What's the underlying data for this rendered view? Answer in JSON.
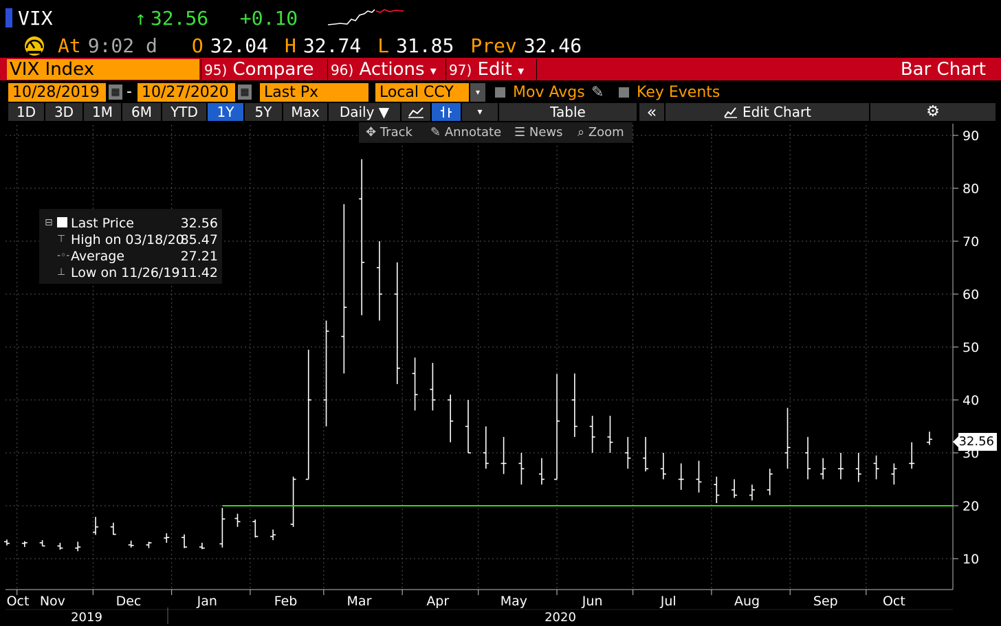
{
  "header": {
    "ticker": "VIX",
    "last_arrow": "↑",
    "last": "32.56",
    "change": "+0.10",
    "time_label": "At",
    "time": "9:02 d",
    "open_label": "O",
    "open": "32.04",
    "high_label": "H",
    "high": "32.74",
    "low_label": "L",
    "low": "31.85",
    "prev_label": "Prev",
    "prev": "32.46"
  },
  "tabs": {
    "index": "VIX Index",
    "compare_num": "95)",
    "compare": "Compare",
    "actions_num": "96)",
    "actions": "Actions",
    "edit_num": "97)",
    "edit": "Edit",
    "dropdown": "▾",
    "chart_kind": "Bar Chart"
  },
  "params": {
    "start_date": "10/28/2019",
    "dash": "-",
    "end_date": "10/27/2020",
    "field": "Last Px",
    "currency": "Local CCY",
    "mov_avgs": "Mov Avgs",
    "key_events": "Key Events"
  },
  "ranges": [
    "1D",
    "3D",
    "1M",
    "6M",
    "YTD",
    "1Y",
    "5Y",
    "Max"
  ],
  "active_range": "1Y",
  "range_controls": {
    "period": "Daily ▼",
    "table": "Table",
    "collapse": "«",
    "edit_chart": "Edit Chart",
    "settings_icon": "⚙"
  },
  "toolbar": {
    "track": "Track",
    "annotate": "Annotate",
    "news": "News",
    "zoom": "Zoom"
  },
  "legend": {
    "last_label": "Last Price",
    "last_value": "32.56",
    "high_label": "High on 03/18/20",
    "high_value": "85.47",
    "avg_label": "Average",
    "avg_value": "27.21",
    "low_label": "Low on 11/26/19",
    "low_value": "11.42"
  },
  "last_tag": "32.56",
  "colors": {
    "orange": "#ff9d00",
    "red_tab": "#c4001b",
    "up_green": "#3dde3d",
    "reference_line": "#33dd11",
    "active_blue": "#1f5fcc"
  },
  "chart_data": {
    "type": "bar",
    "subtype": "OHLC",
    "ylim": [
      4,
      92
    ],
    "yticks": [
      10,
      20,
      30,
      40,
      50,
      60,
      70,
      80,
      90
    ],
    "month_labels": [
      "Oct",
      "Nov",
      "Dec",
      "Jan",
      "Feb",
      "Mar",
      "Apr",
      "May",
      "Jun",
      "Jul",
      "Aug",
      "Sep",
      "Oct"
    ],
    "year_labels": [
      "2019",
      "2020"
    ],
    "reference_line": 20,
    "grid": true,
    "price_side": "right",
    "series": [
      {
        "x": [
          "2019-10-28",
          "2019-11-04",
          "2019-11-11",
          "2019-11-18",
          "2019-11-25",
          "2019-12-02",
          "2019-12-09",
          "2019-12-16",
          "2019-12-23",
          "2019-12-30",
          "2020-01-06",
          "2020-01-13",
          "2020-01-21",
          "2020-01-27",
          "2020-02-03",
          "2020-02-10",
          "2020-02-18",
          "2020-02-24",
          "2020-03-02",
          "2020-03-09",
          "2020-03-16",
          "2020-03-23",
          "2020-03-30",
          "2020-04-06",
          "2020-04-13",
          "2020-04-20",
          "2020-04-27",
          "2020-05-04",
          "2020-05-11",
          "2020-05-18",
          "2020-05-26",
          "2020-06-01",
          "2020-06-08",
          "2020-06-15",
          "2020-06-22",
          "2020-06-29",
          "2020-07-06",
          "2020-07-13",
          "2020-07-20",
          "2020-07-27",
          "2020-08-03",
          "2020-08-10",
          "2020-08-17",
          "2020-08-24",
          "2020-08-31",
          "2020-09-08",
          "2020-09-14",
          "2020-09-21",
          "2020-09-28",
          "2020-10-05",
          "2020-10-12",
          "2020-10-19",
          "2020-10-26"
        ],
        "open": [
          13.2,
          12.9,
          13.0,
          12.4,
          12.0,
          15.0,
          16.0,
          12.6,
          12.6,
          13.9,
          14.0,
          12.2,
          12.8,
          17.6,
          17.0,
          14.2,
          16.5,
          25.0,
          40.0,
          52.0,
          78.0,
          65.0,
          60.0,
          45.0,
          42.0,
          40.0,
          35.0,
          30.0,
          28.0,
          28.0,
          26.0,
          25.0,
          40.0,
          35.0,
          33.0,
          30.0,
          29.0,
          27.0,
          25.0,
          25.0,
          24.0,
          23.0,
          22.0,
          23.0,
          30.0,
          30.0,
          26.0,
          27.0,
          27.0,
          28.0,
          26.0,
          28.0,
          32.0
        ],
        "high": [
          13.6,
          13.3,
          13.5,
          13.0,
          13.2,
          17.9,
          16.8,
          13.4,
          13.2,
          14.8,
          14.6,
          13.0,
          19.6,
          18.5,
          17.4,
          15.5,
          25.5,
          49.5,
          55.0,
          77.0,
          85.5,
          70.0,
          66.0,
          48.0,
          47.0,
          41.0,
          40.0,
          35.0,
          33.0,
          30.0,
          29.0,
          44.9,
          45.0,
          37.0,
          37.0,
          33.0,
          33.0,
          30.0,
          28.0,
          28.5,
          25.5,
          25.0,
          24.0,
          27.0,
          38.5,
          33.0,
          29.0,
          30.0,
          30.0,
          29.5,
          28.0,
          32.0,
          34.0
        ],
        "low": [
          12.5,
          12.2,
          12.4,
          11.7,
          11.4,
          14.5,
          14.5,
          12.1,
          12.0,
          13.0,
          12.0,
          11.8,
          12.1,
          16.0,
          14.0,
          13.5,
          16.0,
          25.0,
          35.0,
          45.0,
          56.0,
          55.0,
          43.0,
          38.0,
          38.0,
          32.0,
          30.0,
          27.0,
          26.0,
          24.0,
          24.0,
          25.0,
          33.0,
          30.0,
          30.0,
          27.0,
          26.5,
          25.0,
          23.0,
          22.5,
          20.5,
          21.5,
          21.0,
          22.0,
          27.0,
          25.0,
          25.0,
          25.0,
          24.5,
          25.0,
          24.0,
          27.0,
          31.5
        ],
        "close": [
          12.9,
          13.0,
          12.4,
          12.0,
          12.2,
          16.0,
          14.6,
          12.5,
          13.0,
          14.0,
          12.2,
          12.0,
          17.5,
          17.0,
          14.2,
          14.5,
          25.0,
          40.0,
          53.0,
          57.5,
          66.0,
          60.0,
          46.0,
          41.0,
          40.0,
          36.0,
          30.0,
          28.0,
          28.0,
          27.0,
          25.0,
          36.0,
          35.0,
          33.0,
          32.0,
          29.0,
          27.0,
          26.0,
          25.0,
          24.5,
          22.0,
          22.0,
          23.0,
          26.0,
          31.0,
          27.0,
          27.0,
          27.0,
          26.0,
          27.0,
          27.0,
          28.0,
          32.56
        ]
      }
    ]
  }
}
